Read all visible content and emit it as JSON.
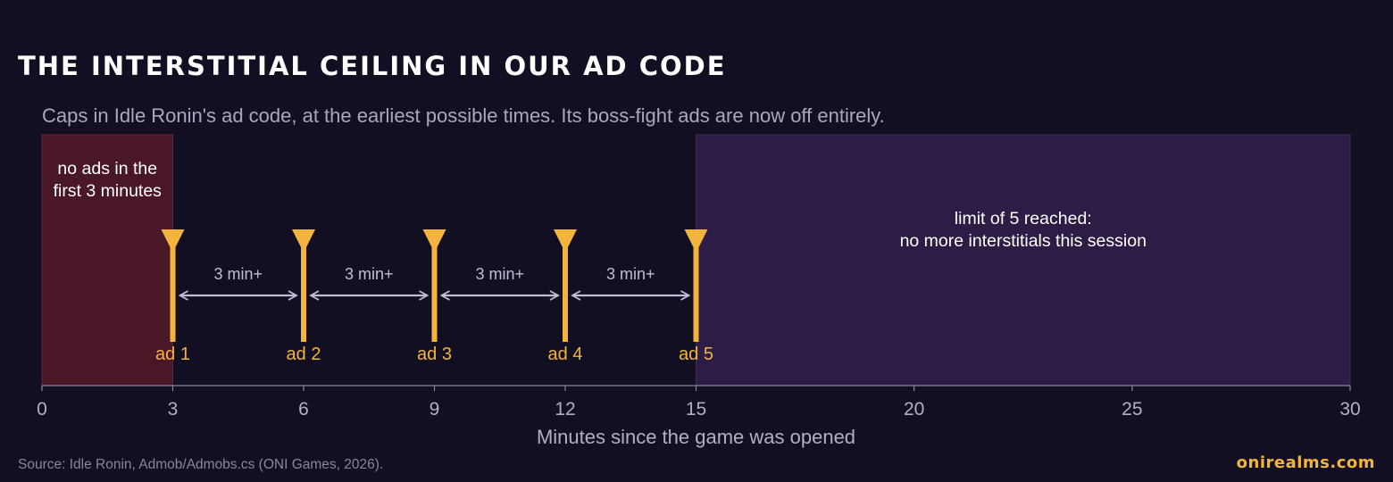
{
  "header": {
    "title": "THE INTERSTITIAL CEILING IN OUR AD CODE",
    "subtitle": "Caps in Idle Ronin's ad code, at the earliest possible times. Its boss-fight ads are now off entirely."
  },
  "footer": {
    "source": "Source: Idle Ronin, Admob/Admobs.cs (ONI Games, 2026).",
    "brand": "onirealms.com"
  },
  "colors": {
    "background": "#120f22",
    "ad_marker": "#f2b43c",
    "no_ads_region": "#4a1727",
    "limit_region": "#2d1c45",
    "gap_arrow": "#c2bcd6",
    "axis": "#8a849e"
  },
  "chart_data": {
    "type": "timeline",
    "xlabel": "Minutes since the game was opened",
    "xlim": [
      0,
      30
    ],
    "xticks": [
      0,
      3,
      6,
      9,
      12,
      15,
      20,
      25,
      30
    ],
    "regions": [
      {
        "start": 0,
        "end": 3,
        "label_lines": [
          "no ads in the",
          "first 3 minutes"
        ]
      },
      {
        "start": 15,
        "end": 30,
        "label_lines": [
          "limit of 5 reached:",
          "no more interstitials this session"
        ]
      }
    ],
    "ads": [
      {
        "x": 3,
        "label": "ad 1"
      },
      {
        "x": 6,
        "label": "ad 2"
      },
      {
        "x": 9,
        "label": "ad 3"
      },
      {
        "x": 12,
        "label": "ad 4"
      },
      {
        "x": 15,
        "label": "ad 5"
      }
    ],
    "gaps": [
      {
        "from": 3,
        "to": 6,
        "label": "3 min+"
      },
      {
        "from": 6,
        "to": 9,
        "label": "3 min+"
      },
      {
        "from": 9,
        "to": 12,
        "label": "3 min+"
      },
      {
        "from": 12,
        "to": 15,
        "label": "3 min+"
      }
    ]
  }
}
